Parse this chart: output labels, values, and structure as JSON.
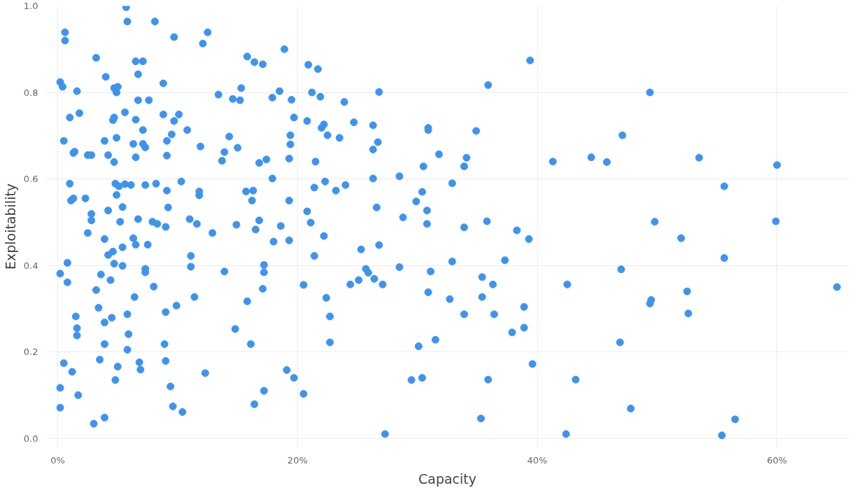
{
  "chart_data": {
    "type": "scatter",
    "xlabel": "Capacity",
    "ylabel": "Exploitability",
    "color": "#3d94ee",
    "marker": "circle",
    "grid": true,
    "xlim": [
      -1,
      66
    ],
    "ylim": [
      -0.02,
      1.0
    ],
    "xticks": [
      {
        "value": 0,
        "label": "0%"
      },
      {
        "value": 20,
        "label": "20%"
      },
      {
        "value": 40,
        "label": "40%"
      },
      {
        "value": 60,
        "label": "60%"
      }
    ],
    "yticks": [
      {
        "value": 0,
        "label": "0.0"
      },
      {
        "value": 0.2,
        "label": "0.2"
      },
      {
        "value": 0.4,
        "label": "0.4"
      },
      {
        "value": 0.6,
        "label": "0.6"
      },
      {
        "value": 0.8,
        "label": "0.8"
      },
      {
        "value": 1,
        "label": "1.0"
      }
    ],
    "x": [
      5.7,
      5.8,
      8.1,
      0.6,
      0.6,
      12.5,
      12.1,
      9.7,
      18.9,
      3.2,
      6.5,
      7.1,
      15.8,
      16.4,
      17.1,
      20.9,
      21.7,
      39.4,
      0.2,
      0.4,
      4.0,
      6.7,
      8.8,
      4.7,
      5.0,
      4.9,
      1.6,
      15.3,
      14.6,
      15.2,
      13.4,
      18.5,
      17.9,
      19.5,
      21.2,
      21.9,
      23.9,
      26.8,
      35.9,
      49.4,
      1.8,
      1.0,
      5.6,
      7.6,
      6.7,
      8.8,
      10.1,
      9.7,
      10.8,
      4.7,
      4.6,
      6.5,
      7.1,
      19.7,
      20.8,
      22.2,
      22.0,
      24.7,
      26.3,
      30.9,
      30.9,
      34.9,
      0.5,
      3.9,
      4.9,
      6.3,
      7.1,
      7.3,
      9.1,
      9.5,
      11.9,
      14.3,
      19.4,
      19.4,
      22.5,
      23.5,
      26.7,
      26.3,
      31.8,
      47.1,
      1.3,
      1.4,
      2.5,
      2.8,
      4.2,
      6.5,
      9.1,
      13.9,
      13.7,
      15.0,
      17.4,
      16.8,
      19.3,
      21.5,
      34.1,
      41.3,
      44.5,
      45.8,
      53.5,
      60.0,
      33.9,
      30.5,
      4.7,
      6.1,
      1.0,
      1.3,
      1.1,
      2.3,
      4.8,
      5.1,
      5.6,
      4.9,
      7.3,
      8.2,
      9.1,
      10.3,
      11.8,
      11.8,
      15.7,
      16.3,
      17.9,
      16.2,
      19.3,
      21.4,
      22.3,
      23.2,
      24.0,
      26.6,
      26.3,
      28.5,
      29.9,
      30.4,
      30.8,
      32.9,
      55.6,
      59.9,
      49.8,
      35.8,
      28.8,
      30.8,
      33.9,
      2.8,
      2.8,
      4.2,
      5.2,
      5.4,
      6.7,
      7.9,
      8.3,
      9.0,
      9.2,
      11.0,
      11.6,
      12.9,
      14.9,
      16.5,
      16.8,
      18.6,
      18.0,
      19.3,
      21.1,
      22.2,
      20.8,
      39.3,
      38.3,
      52.0,
      26.8,
      25.3,
      6.3,
      3.9,
      2.5,
      6.5,
      7.5,
      11.1,
      11.1,
      21.4,
      4.2,
      4.6,
      5.4,
      4.7,
      5.4,
      7.3,
      7.3,
      0.8,
      0.2,
      0.8,
      3.6,
      4.4,
      13.9,
      17.2,
      17.2,
      17.1,
      25.7,
      25.9,
      26.4,
      27.1,
      28.5,
      31.1,
      32.9,
      37.3,
      35.4,
      36.3,
      47.0,
      55.6,
      65.0,
      52.5,
      42.5,
      24.4,
      20.5,
      3.2,
      8.0,
      6.4,
      11.4,
      15.8,
      30.9,
      32.7,
      35.4,
      22.4,
      22.7,
      25.1,
      9.9,
      3.4,
      1.5,
      4.5,
      3.9,
      9.0,
      14.8,
      5.8,
      33.9,
      36.4,
      38.9,
      49.5,
      49.4,
      52.6,
      38.9,
      37.9,
      1.6,
      1.6,
      5.9,
      3.9,
      8.9,
      16.1,
      22.7,
      30.1,
      31.5,
      46.9,
      39.6,
      0.5,
      3.5,
      5.0,
      5.8,
      6.8,
      6.9,
      9.0,
      1.2,
      4.8,
      12.3,
      19.1,
      19.7,
      29.5,
      30.4,
      35.9,
      43.2,
      0.2,
      9.4,
      1.7,
      20.5,
      17.2,
      16.4,
      9.6,
      10.4,
      0.2,
      47.8,
      3.9,
      3.0,
      35.3,
      56.5,
      27.3,
      42.4,
      55.4
    ],
    "values": [
      0.997,
      0.964,
      0.964,
      0.939,
      0.92,
      0.939,
      0.913,
      0.928,
      0.9,
      0.88,
      0.872,
      0.872,
      0.883,
      0.87,
      0.865,
      0.864,
      0.854,
      0.874,
      0.824,
      0.813,
      0.836,
      0.842,
      0.821,
      0.81,
      0.813,
      0.8,
      0.803,
      0.81,
      0.785,
      0.782,
      0.795,
      0.803,
      0.788,
      0.783,
      0.8,
      0.79,
      0.778,
      0.801,
      0.817,
      0.8,
      0.752,
      0.742,
      0.754,
      0.782,
      0.782,
      0.749,
      0.749,
      0.734,
      0.713,
      0.742,
      0.736,
      0.737,
      0.713,
      0.742,
      0.734,
      0.726,
      0.718,
      0.731,
      0.724,
      0.718,
      0.713,
      0.711,
      0.688,
      0.688,
      0.695,
      0.681,
      0.681,
      0.673,
      0.688,
      0.703,
      0.675,
      0.698,
      0.68,
      0.701,
      0.701,
      0.695,
      0.685,
      0.668,
      0.657,
      0.701,
      0.66,
      0.663,
      0.655,
      0.655,
      0.655,
      0.65,
      0.654,
      0.662,
      0.642,
      0.672,
      0.645,
      0.637,
      0.647,
      0.64,
      0.649,
      0.64,
      0.65,
      0.639,
      0.649,
      0.632,
      0.629,
      0.629,
      0.639,
      0.586,
      0.589,
      0.555,
      0.55,
      0.555,
      0.589,
      0.583,
      0.588,
      0.563,
      0.586,
      0.589,
      0.573,
      0.594,
      0.571,
      0.562,
      0.571,
      0.573,
      0.601,
      0.55,
      0.55,
      0.58,
      0.594,
      0.573,
      0.586,
      0.534,
      0.601,
      0.606,
      0.548,
      0.57,
      0.527,
      0.59,
      0.583,
      0.502,
      0.501,
      0.502,
      0.511,
      0.496,
      0.488,
      0.519,
      0.504,
      0.527,
      0.501,
      0.535,
      0.507,
      0.501,
      0.496,
      0.489,
      0.534,
      0.507,
      0.496,
      0.475,
      0.494,
      0.483,
      0.504,
      0.491,
      0.455,
      0.458,
      0.499,
      0.468,
      0.525,
      0.461,
      0.481,
      0.463,
      0.447,
      0.437,
      0.463,
      0.461,
      0.475,
      0.448,
      0.448,
      0.422,
      0.397,
      0.422,
      0.424,
      0.432,
      0.442,
      0.404,
      0.399,
      0.392,
      0.384,
      0.406,
      0.381,
      0.361,
      0.379,
      0.366,
      0.386,
      0.401,
      0.384,
      0.346,
      0.392,
      0.383,
      0.369,
      0.356,
      0.396,
      0.386,
      0.409,
      0.412,
      0.373,
      0.356,
      0.391,
      0.417,
      0.35,
      0.34,
      0.356,
      0.356,
      0.355,
      0.343,
      0.351,
      0.327,
      0.327,
      0.317,
      0.338,
      0.322,
      0.327,
      0.325,
      0.282,
      0.366,
      0.307,
      0.302,
      0.282,
      0.279,
      0.268,
      0.292,
      0.253,
      0.287,
      0.287,
      0.287,
      0.304,
      0.32,
      0.312,
      0.289,
      0.256,
      0.245,
      0.255,
      0.238,
      0.241,
      0.218,
      0.218,
      0.218,
      0.222,
      0.213,
      0.228,
      0.222,
      0.172,
      0.174,
      0.182,
      0.166,
      0.205,
      0.176,
      0.159,
      0.179,
      0.154,
      0.135,
      0.151,
      0.158,
      0.14,
      0.135,
      0.14,
      0.136,
      0.136,
      0.117,
      0.12,
      0.1,
      0.103,
      0.11,
      0.079,
      0.074,
      0.061,
      0.071,
      0.069,
      0.048,
      0.034,
      0.046,
      0.044,
      0.01,
      0.01,
      0.007
    ]
  }
}
